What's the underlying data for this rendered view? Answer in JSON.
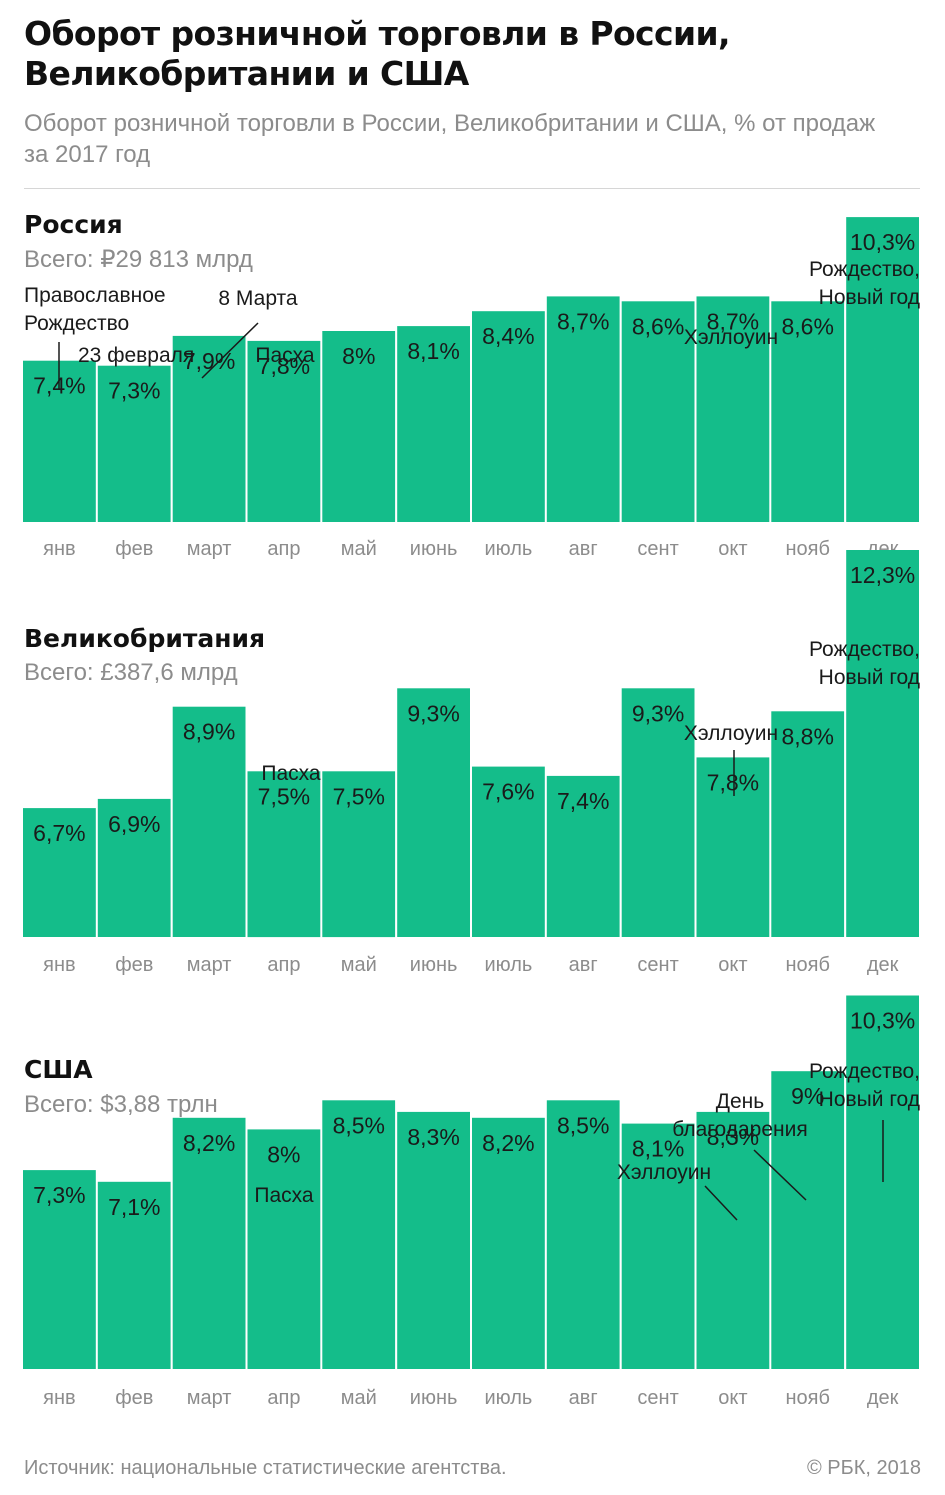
{
  "title": "Оборот розничной торговли в России, Великобритании и США",
  "subtitle": "Оборот розничной торговли в России, Великобритании и США, % от продаж за 2017 год",
  "colors": {
    "bar": "#14bd8a",
    "text": "#1a1a1a",
    "muted": "#8c8c8c"
  },
  "footer": {
    "source": "Источник: национальные статистические агентства.",
    "copyright": "© РБК, 2018"
  },
  "chart_data": [
    {
      "type": "bar",
      "title": "Россия",
      "subtitle": "Всего: ₽29 813 млрд",
      "categories": [
        "янв",
        "фев",
        "март",
        "апр",
        "май",
        "июнь",
        "июль",
        "авг",
        "сент",
        "окт",
        "нояб",
        "дек"
      ],
      "values": [
        7.4,
        7.3,
        7.9,
        7.8,
        8,
        8.1,
        8.4,
        8.7,
        8.6,
        8.7,
        8.6,
        10.3
      ],
      "value_labels": [
        "7,4%",
        "7,3%",
        "7,9%",
        "7,8%",
        "8%",
        "8,1%",
        "8,4%",
        "8,7%",
        "8,6%",
        "8,7%",
        "8,6%",
        "10,3%"
      ],
      "annotations": [
        {
          "index": 0,
          "lines": [
            "Православное",
            "Рождество"
          ]
        },
        {
          "index": 1,
          "lines": [
            "23 февраля"
          ]
        },
        {
          "index": 2,
          "lines": [
            "8 Марта"
          ]
        },
        {
          "index": 3,
          "lines": [
            "Пасха"
          ]
        },
        {
          "index": 9,
          "lines": [
            "Хэллоуин"
          ]
        },
        {
          "index": 11,
          "lines": [
            "Рождество,",
            "Новый год"
          ]
        }
      ]
    },
    {
      "type": "bar",
      "title": "Великобритания",
      "subtitle": "Всего: £387,6 млрд",
      "categories": [
        "янв",
        "фев",
        "март",
        "апр",
        "май",
        "июнь",
        "июль",
        "авг",
        "сент",
        "окт",
        "нояб",
        "дек"
      ],
      "values": [
        6.7,
        6.9,
        8.9,
        7.5,
        7.5,
        9.3,
        7.6,
        7.4,
        9.3,
        7.8,
        8.8,
        12.3
      ],
      "value_labels": [
        "6,7%",
        "6,9%",
        "8,9%",
        "7,5%",
        "7,5%",
        "9,3%",
        "7,6%",
        "7,4%",
        "9,3%",
        "7,8%",
        "8,8%",
        "12,3%"
      ],
      "annotations": [
        {
          "index": 3,
          "lines": [
            "Пасха"
          ]
        },
        {
          "index": 9,
          "lines": [
            "Хэллоуин"
          ]
        },
        {
          "index": 11,
          "lines": [
            "Рождество,",
            "Новый год"
          ]
        }
      ]
    },
    {
      "type": "bar",
      "title": "США",
      "subtitle": "Всего: $3,88 трлн",
      "categories": [
        "янв",
        "фев",
        "март",
        "апр",
        "май",
        "июнь",
        "июль",
        "авг",
        "сент",
        "окт",
        "нояб",
        "дек"
      ],
      "values": [
        7.3,
        7.1,
        8.2,
        8,
        8.5,
        8.3,
        8.2,
        8.5,
        8.1,
        8.3,
        9,
        10.3
      ],
      "value_labels": [
        "7,3%",
        "7,1%",
        "8,2%",
        "8%",
        "8,5%",
        "8,3%",
        "8,2%",
        "8,5%",
        "8,1%",
        "8,3%",
        "9%",
        "10,3%"
      ],
      "annotations": [
        {
          "index": 3,
          "lines": [
            "Пасха"
          ]
        },
        {
          "index": 9,
          "lines": [
            "Хэллоуин"
          ]
        },
        {
          "index": 10,
          "lines": [
            "День",
            "благодарения"
          ]
        },
        {
          "index": 11,
          "lines": [
            "Рождество,",
            "Новый год"
          ]
        }
      ]
    }
  ]
}
